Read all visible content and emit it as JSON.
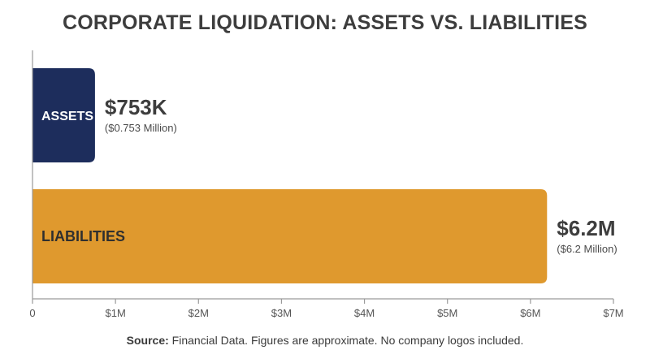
{
  "title": "CORPORATE LIQUIDATION: ASSETS VS. LIABILITIES",
  "source": {
    "label": "Source:",
    "text": "Financial Data. Figures are approximate. No company logos included."
  },
  "colors": {
    "assets": "#1d2d5c",
    "liabilities": "#df992e",
    "axis": "#9a9a9a",
    "text": "#3d3d3d"
  },
  "chart_data": {
    "type": "bar",
    "orientation": "horizontal",
    "categories": [
      "ASSETS",
      "LIABILITIES"
    ],
    "values": [
      0.753,
      6.2
    ],
    "value_labels": [
      "$753K",
      "$6.2M"
    ],
    "sub_labels": [
      "($0.753 Million)",
      "($6.2 Million)"
    ],
    "xlim": [
      0,
      7
    ],
    "xticks": [
      0,
      1,
      2,
      3,
      4,
      5,
      6,
      7
    ],
    "xtick_labels": [
      "0",
      "$1M",
      "$2M",
      "$3M",
      "$4M",
      "$5M",
      "$6M",
      "$7M"
    ],
    "grid": false
  }
}
